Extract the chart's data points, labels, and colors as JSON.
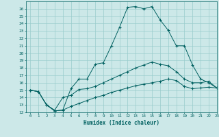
{
  "xlabel": "Humidex (Indice chaleur)",
  "xlim": [
    -0.5,
    23
  ],
  "ylim": [
    12,
    27
  ],
  "xticks": [
    0,
    1,
    2,
    3,
    4,
    5,
    6,
    7,
    8,
    9,
    10,
    11,
    12,
    13,
    14,
    15,
    16,
    17,
    18,
    19,
    20,
    21,
    22,
    23
  ],
  "yticks": [
    12,
    13,
    14,
    15,
    16,
    17,
    18,
    19,
    20,
    21,
    22,
    23,
    24,
    25,
    26
  ],
  "bg_color": "#cce8e8",
  "line_color": "#006060",
  "grid_color": "#99cccc",
  "series1_x": [
    0,
    1,
    2,
    3,
    4,
    5,
    6,
    7,
    8,
    9,
    10,
    11,
    12,
    13,
    14,
    15,
    16,
    17,
    18,
    19,
    20,
    21,
    22,
    23
  ],
  "series1_y": [
    15.0,
    14.8,
    13.0,
    12.2,
    12.3,
    15.2,
    16.5,
    16.5,
    18.5,
    18.7,
    21.0,
    23.5,
    26.2,
    26.3,
    26.0,
    26.3,
    24.5,
    23.1,
    21.0,
    21.0,
    18.4,
    16.5,
    16.0,
    15.3
  ],
  "series2_x": [
    0,
    1,
    2,
    3,
    4,
    5,
    6,
    7,
    8,
    9,
    10,
    11,
    12,
    13,
    14,
    15,
    16,
    17,
    18,
    19,
    20,
    21,
    22,
    23
  ],
  "series2_y": [
    15.0,
    14.8,
    13.0,
    12.3,
    14.0,
    14.3,
    15.1,
    15.2,
    15.5,
    16.0,
    16.5,
    17.0,
    17.5,
    18.0,
    18.4,
    18.8,
    18.5,
    18.3,
    17.5,
    16.5,
    16.0,
    16.0,
    16.2,
    15.3
  ],
  "series3_x": [
    0,
    1,
    2,
    3,
    4,
    5,
    6,
    7,
    8,
    9,
    10,
    11,
    12,
    13,
    14,
    15,
    16,
    17,
    18,
    19,
    20,
    21,
    22,
    23
  ],
  "series3_y": [
    15.0,
    14.8,
    13.0,
    12.2,
    12.3,
    12.8,
    13.2,
    13.6,
    14.0,
    14.3,
    14.7,
    15.0,
    15.3,
    15.6,
    15.8,
    16.0,
    16.2,
    16.5,
    16.3,
    15.5,
    15.2,
    15.3,
    15.4,
    15.3
  ]
}
